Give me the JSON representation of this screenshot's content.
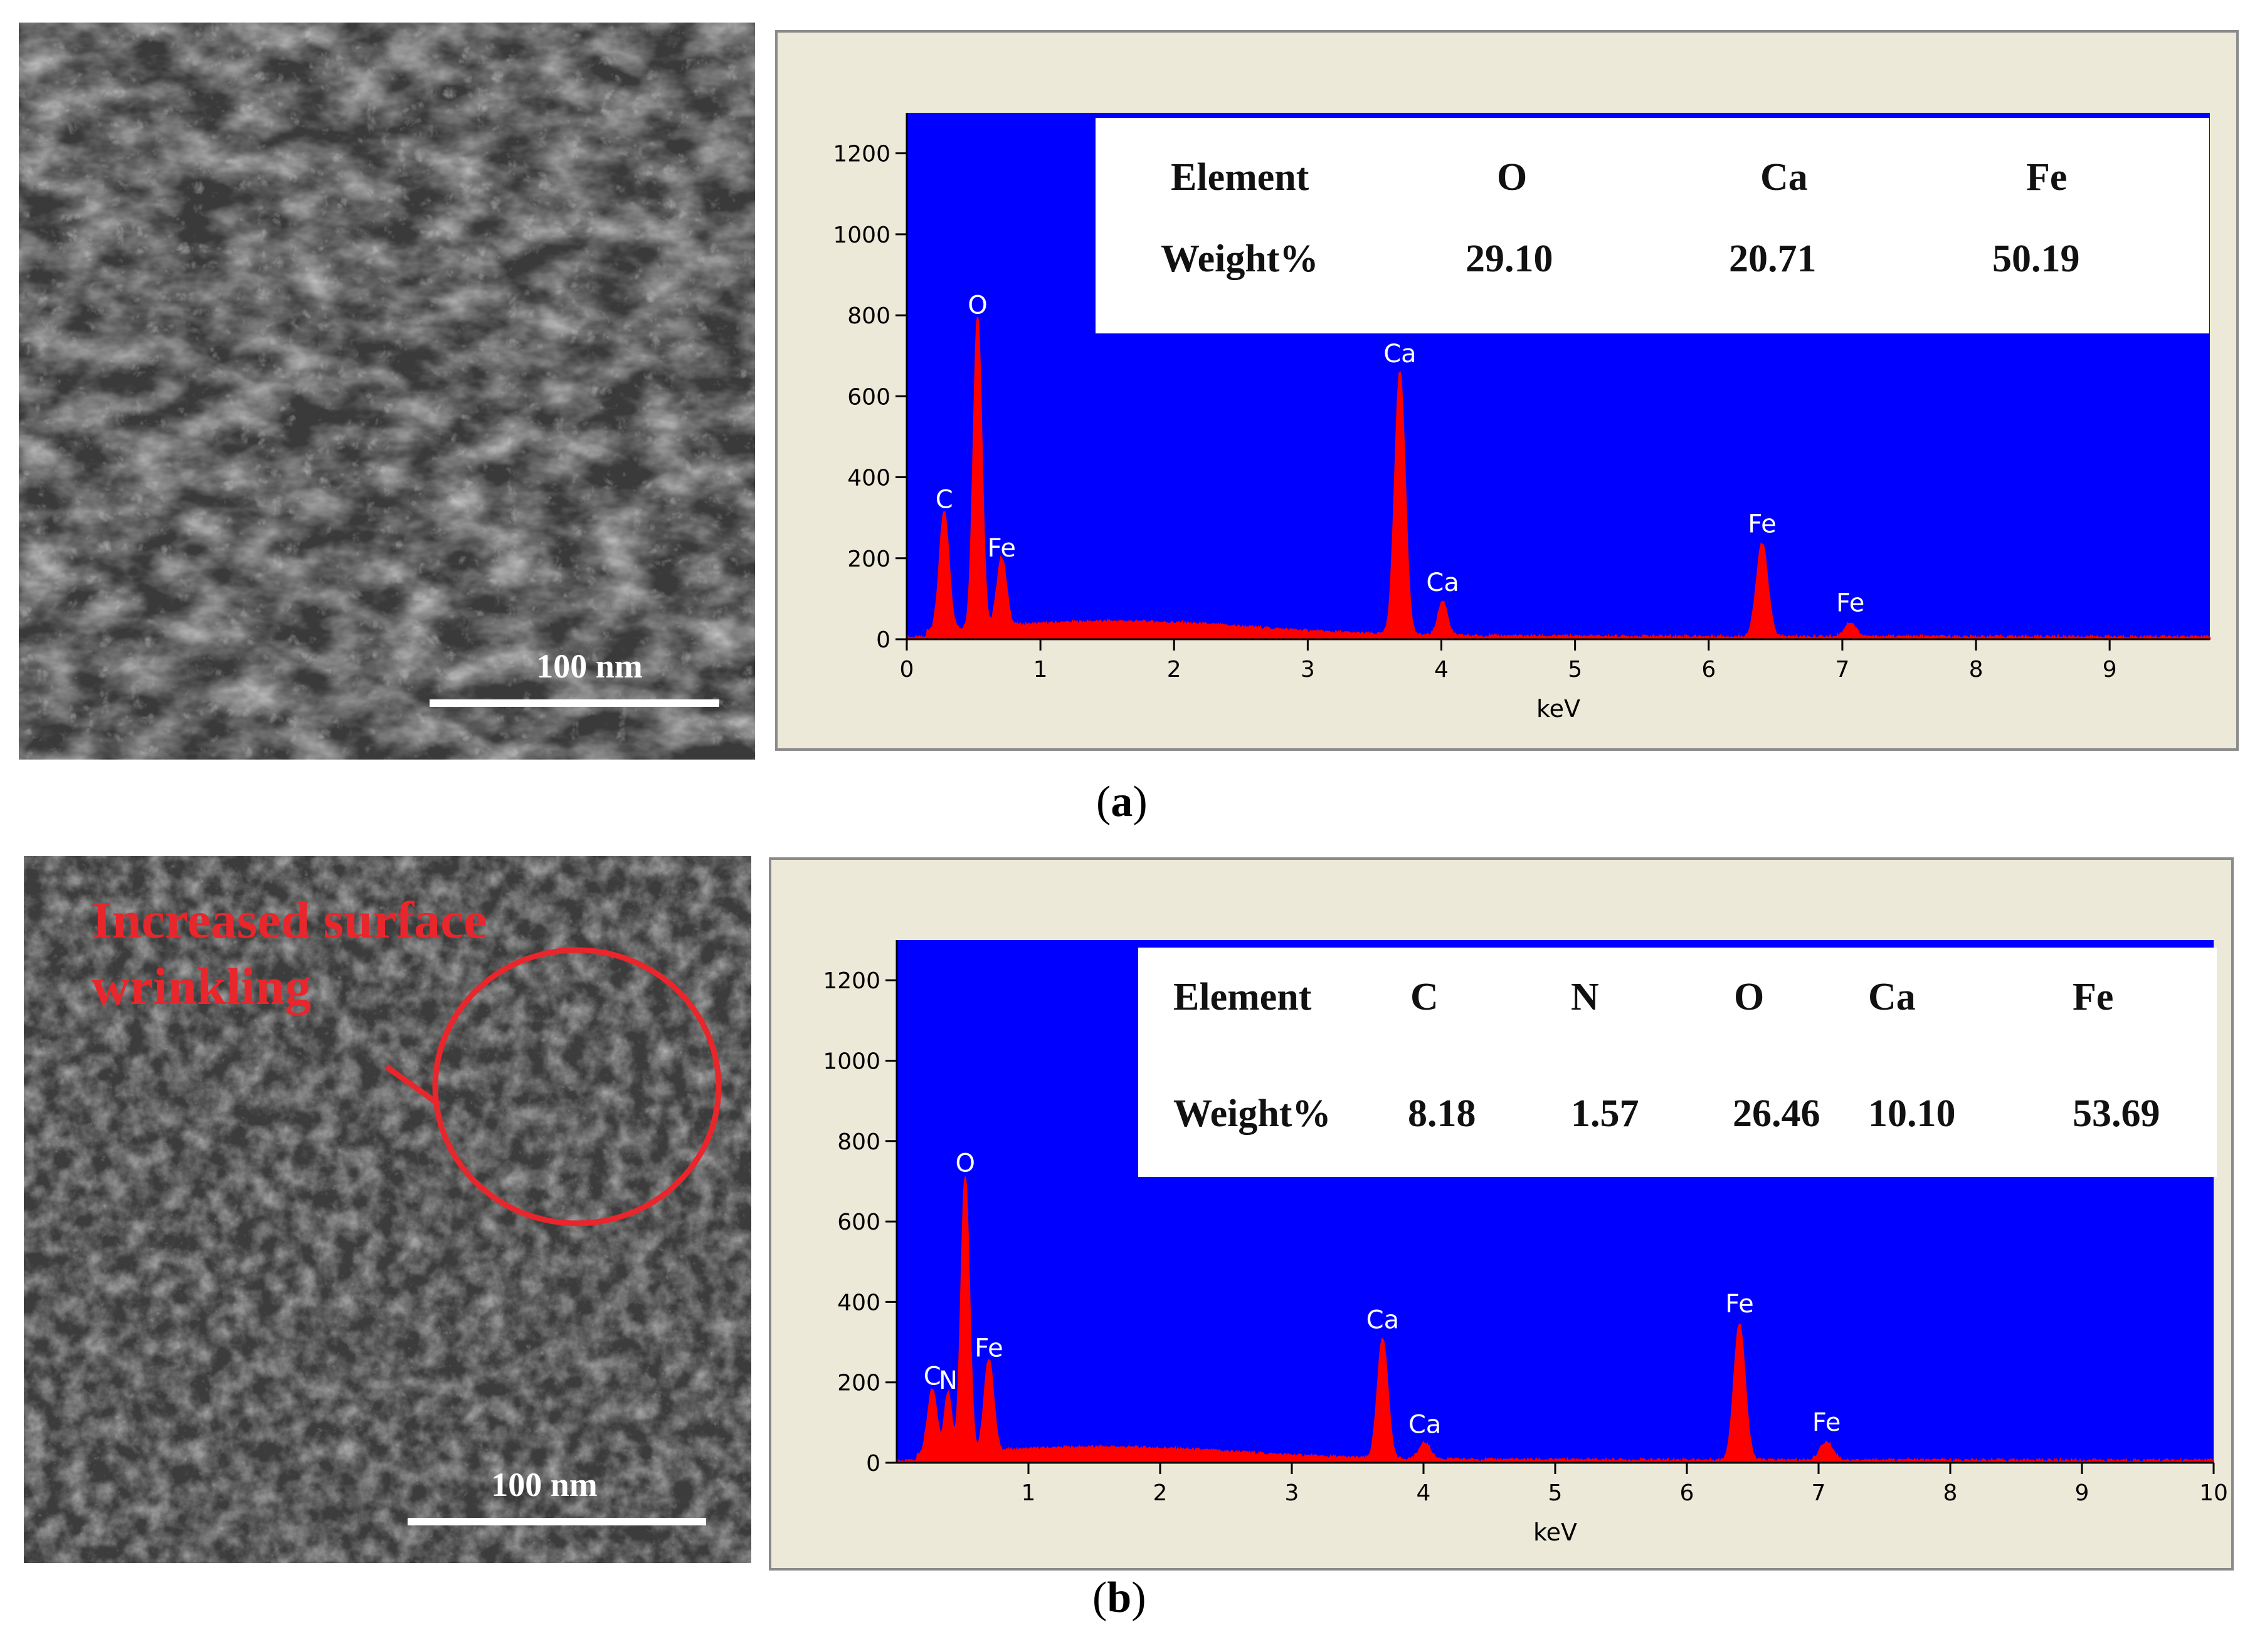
{
  "panels": [
    {
      "id": "a",
      "caption_letter": "a",
      "scale_bar_label": "100 nm",
      "annotation": "",
      "eds_table": {
        "header_label": "Element",
        "value_label": "Weight%",
        "elements": [
          "O",
          "Ca",
          "Fe"
        ],
        "weights": [
          "29.10",
          "20.71",
          "50.19"
        ]
      },
      "chart_data": {
        "type": "line",
        "xlabel": "keV",
        "ylabel": "",
        "xlim": [
          0,
          9.75
        ],
        "ylim": [
          0,
          1300
        ],
        "x_ticks": [
          "0",
          "1",
          "2",
          "3",
          "4",
          "5",
          "6",
          "7",
          "8",
          "9"
        ],
        "y_ticks": [
          "0",
          "200",
          "400",
          "600",
          "800",
          "1000",
          "1200"
        ],
        "plot_background": "#0000ff",
        "spectrum_color": "#ff0000",
        "peaks": [
          {
            "label": "C",
            "x": 0.28,
            "y": 290,
            "width": 0.05
          },
          {
            "label": "O",
            "x": 0.53,
            "y": 770,
            "width": 0.045
          },
          {
            "label": "Fe",
            "x": 0.71,
            "y": 170,
            "width": 0.05
          },
          {
            "label": "Ca",
            "x": 3.69,
            "y": 650,
            "width": 0.055
          },
          {
            "label": "Ca",
            "x": 4.01,
            "y": 85,
            "width": 0.05
          },
          {
            "label": "Fe",
            "x": 6.4,
            "y": 230,
            "width": 0.06
          },
          {
            "label": "Fe",
            "x": 7.06,
            "y": 35,
            "width": 0.06
          }
        ],
        "background_level": 35
      }
    },
    {
      "id": "b",
      "caption_letter": "b",
      "scale_bar_label": "100 nm",
      "annotation": "Increased surface\nwrinkling",
      "eds_table": {
        "header_label": "Element",
        "value_label": "Weight%",
        "elements": [
          "C",
          "N",
          "O",
          "Ca",
          "Fe"
        ],
        "weights": [
          "8.18",
          "1.57",
          "26.46",
          "10.10",
          "53.69"
        ]
      },
      "chart_data": {
        "type": "line",
        "xlabel": "keV",
        "ylabel": "",
        "xlim": [
          0,
          10
        ],
        "ylim": [
          0,
          1300
        ],
        "x_ticks": [
          "1",
          "2",
          "3",
          "4",
          "5",
          "6",
          "7",
          "8",
          "9",
          "10"
        ],
        "y_ticks": [
          "0",
          "200",
          "400",
          "600",
          "800",
          "1000",
          "1200"
        ],
        "plot_background": "#0000ff",
        "spectrum_color": "#ff0000",
        "peaks": [
          {
            "label": "C",
            "x": 0.27,
            "y": 160,
            "width": 0.05
          },
          {
            "label": "N",
            "x": 0.39,
            "y": 150,
            "width": 0.04
          },
          {
            "label": "O",
            "x": 0.52,
            "y": 690,
            "width": 0.045
          },
          {
            "label": "Fe",
            "x": 0.7,
            "y": 230,
            "width": 0.05
          },
          {
            "label": "Ca",
            "x": 3.69,
            "y": 300,
            "width": 0.055
          },
          {
            "label": "Ca",
            "x": 4.01,
            "y": 40,
            "width": 0.06
          },
          {
            "label": "Fe",
            "x": 6.4,
            "y": 340,
            "width": 0.06
          },
          {
            "label": "Fe",
            "x": 7.06,
            "y": 45,
            "width": 0.07
          }
        ],
        "background_level": 30
      }
    }
  ]
}
